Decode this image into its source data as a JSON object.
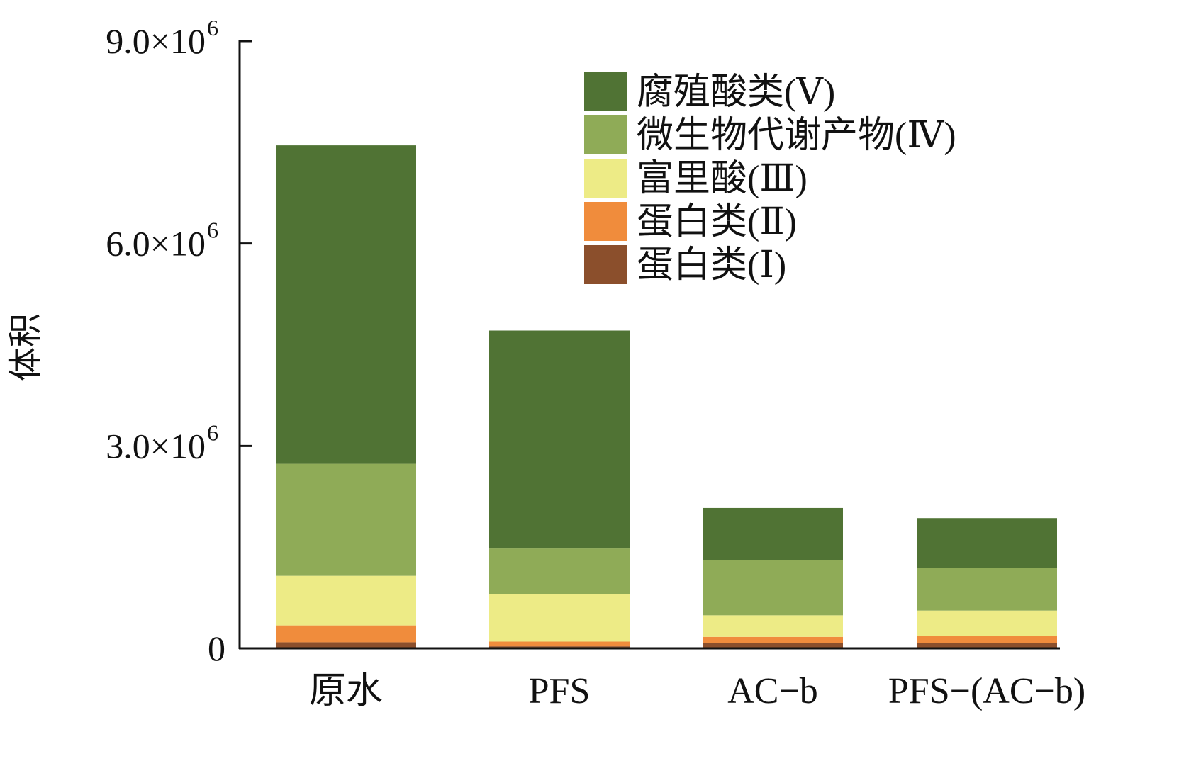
{
  "chart_data": {
    "type": "bar",
    "stacked": true,
    "title": "",
    "xlabel": "",
    "ylabel": "体积",
    "ylim": [
      0,
      9000000
    ],
    "yticks": [
      {
        "value": 0,
        "label": "0"
      },
      {
        "value": 3000000,
        "label": "3.0×10",
        "exp": "6"
      },
      {
        "value": 6000000,
        "label": "6.0×10",
        "exp": "6"
      },
      {
        "value": 9000000,
        "label": "9.0×10",
        "exp": "6"
      }
    ],
    "categories": [
      "原水",
      "PFS",
      "AC−b",
      "PFS−(AC−b)"
    ],
    "legend_position": "top-right",
    "series": [
      {
        "name": "蛋白类(Ⅰ)",
        "color": "#8B4F2C",
        "values": [
          90000,
          30000,
          80000,
          80000
        ]
      },
      {
        "name": "蛋白类(Ⅱ)",
        "color": "#F08C3C",
        "values": [
          250000,
          70000,
          90000,
          100000
        ]
      },
      {
        "name": "富里酸(Ⅲ)",
        "color": "#EDEB86",
        "values": [
          735000,
          700000,
          320000,
          380000
        ]
      },
      {
        "name": "微生物代谢产物(Ⅳ)",
        "color": "#8FAB57",
        "values": [
          1660000,
          680000,
          820000,
          630000
        ]
      },
      {
        "name": "腐殖酸类(Ⅴ)",
        "color": "#507334",
        "values": [
          4720000,
          3230000,
          770000,
          740000
        ]
      }
    ]
  }
}
